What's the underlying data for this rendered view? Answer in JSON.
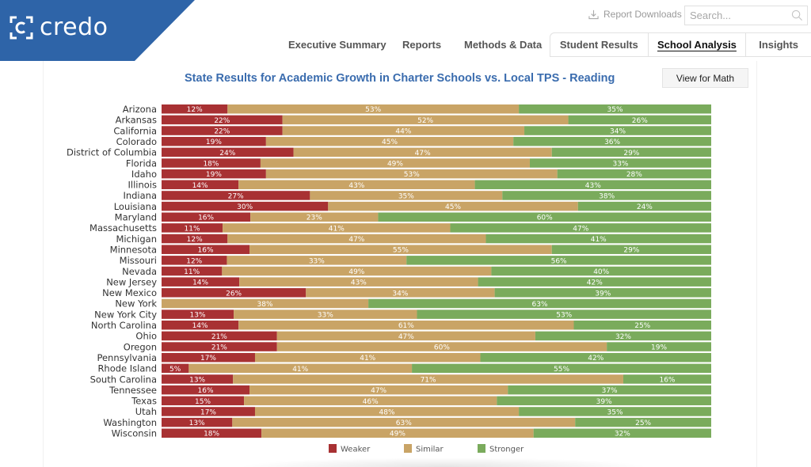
{
  "header": {
    "brand_name": "credo",
    "report_downloads_label": "Report Downloads",
    "search_placeholder": "Search...",
    "nav_links": [
      "Executive Summary",
      "Reports",
      "Methods & Data"
    ],
    "tabs": [
      {
        "label": "Student Results",
        "active": false
      },
      {
        "label": "School Analysis",
        "active": true
      },
      {
        "label": "Insights",
        "active": false
      }
    ]
  },
  "view_button_label": "View for Math",
  "colors": {
    "brand": "#2e64a8",
    "title": "#3a6cae",
    "weaker": "#a83133",
    "similar": "#c9a466",
    "stronger": "#7aab5c"
  },
  "chart_data": {
    "type": "bar",
    "orientation": "horizontal",
    "stacked": "100%",
    "title": "State Results for Academic Growth in Charter Schools vs.  Local TPS - Reading",
    "xlabel": "",
    "ylabel": "",
    "legend_position": "bottom",
    "categories": [
      "Arizona",
      "Arkansas",
      "California",
      "Colorado",
      "District of Columbia",
      "Florida",
      "Idaho",
      "Illinois",
      "Indiana",
      "Louisiana",
      "Maryland",
      "Massachusetts",
      "Michigan",
      "Minnesota",
      "Missouri",
      "Nevada",
      "New Jersey",
      "New Mexico",
      "New York",
      "New York City",
      "North Carolina",
      "Ohio",
      "Oregon",
      "Pennsylvania",
      "Rhode Island",
      "South Carolina",
      "Tennessee",
      "Texas",
      "Utah",
      "Washington",
      "Wisconsin"
    ],
    "series": [
      {
        "name": "Weaker",
        "color": "#a83133",
        "values": [
          12,
          22,
          22,
          19,
          24,
          18,
          19,
          14,
          27,
          30,
          16,
          11,
          12,
          16,
          12,
          11,
          14,
          26,
          0,
          13,
          14,
          21,
          21,
          17,
          5,
          13,
          16,
          15,
          17,
          13,
          18
        ]
      },
      {
        "name": "Similar",
        "color": "#c9a466",
        "values": [
          53,
          52,
          44,
          45,
          47,
          49,
          53,
          43,
          35,
          45,
          23,
          41,
          47,
          55,
          33,
          49,
          43,
          34,
          38,
          33,
          61,
          47,
          60,
          41,
          41,
          71,
          47,
          46,
          48,
          63,
          49
        ]
      },
      {
        "name": "Stronger",
        "color": "#7aab5c",
        "values": [
          35,
          26,
          34,
          36,
          29,
          33,
          28,
          43,
          38,
          24,
          60,
          47,
          41,
          29,
          56,
          40,
          42,
          39,
          63,
          53,
          25,
          32,
          19,
          42,
          55,
          16,
          37,
          39,
          35,
          25,
          32
        ]
      }
    ],
    "value_suffix": "%"
  }
}
